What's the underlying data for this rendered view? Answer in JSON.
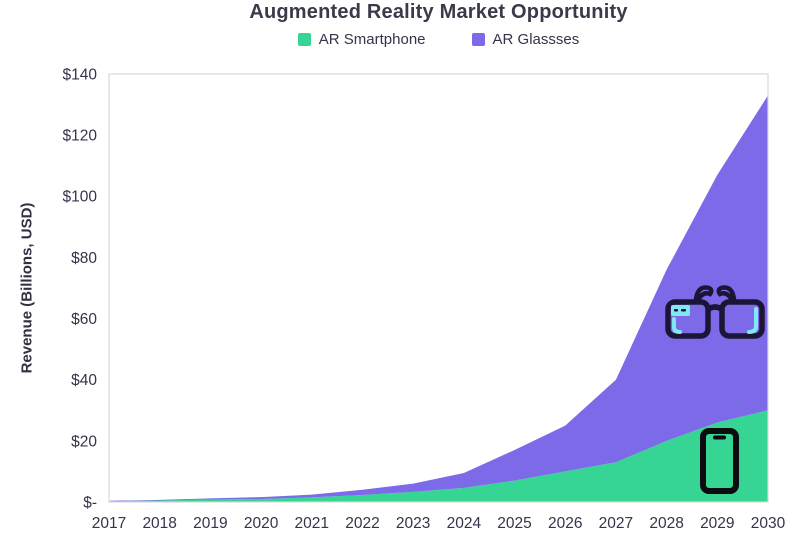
{
  "title": "Augmented Reality Market Opportunity",
  "y_axis_title": "Revenue (Billions, USD)",
  "legend": [
    {
      "label": "AR Smartphone",
      "color": "#37D593"
    },
    {
      "label": "AR Glassses",
      "color": "#7D6AE8"
    }
  ],
  "icons": {
    "glasses": "ar-glasses-icon",
    "smartphone": "ar-smartphone-icon"
  },
  "colors": {
    "smartphone_green": "#37D593",
    "glasses_purple": "#7D6AE8",
    "text_dark": "#34344A",
    "plot_border": "#D8D8D8",
    "icon_outline_dark": "#1C1535",
    "icon_accent_cyan": "#7FE9F2",
    "phone_black": "#0B0B10"
  },
  "chart_data": {
    "type": "area",
    "stacked": true,
    "title": "Augmented Reality Market Opportunity",
    "xlabel": "",
    "ylabel": "Revenue (Billions, USD)",
    "grid": false,
    "legend_position": "top",
    "ylim": [
      0,
      140
    ],
    "categories": [
      "2017",
      "2018",
      "2019",
      "2020",
      "2021",
      "2022",
      "2023",
      "2024",
      "2025",
      "2026",
      "2027",
      "2028",
      "2029",
      "2030"
    ],
    "series": [
      {
        "name": "AR Smartphone",
        "color": "#37D593",
        "values": [
          0.3,
          0.5,
          0.8,
          1.0,
          1.5,
          2.3,
          3.3,
          4.6,
          7,
          10,
          13,
          20,
          26,
          30
        ]
      },
      {
        "name": "AR Glassses",
        "color": "#7D6AE8",
        "values": [
          0.1,
          0.2,
          0.4,
          0.6,
          0.9,
          1.7,
          2.7,
          4.9,
          10,
          15,
          27,
          56,
          81,
          103
        ]
      }
    ],
    "stacked_totals": [
      0.4,
      0.7,
      1.2,
      1.6,
      2.4,
      4,
      6,
      9.5,
      17,
      25,
      40,
      76,
      107,
      133
    ],
    "y_ticks": [
      {
        "value": 0,
        "label": "$-"
      },
      {
        "value": 20,
        "label": "$20"
      },
      {
        "value": 40,
        "label": "$40"
      },
      {
        "value": 60,
        "label": "$60"
      },
      {
        "value": 80,
        "label": "$80"
      },
      {
        "value": 100,
        "label": "$100"
      },
      {
        "value": 120,
        "label": "$120"
      },
      {
        "value": 140,
        "label": "$140"
      }
    ]
  }
}
